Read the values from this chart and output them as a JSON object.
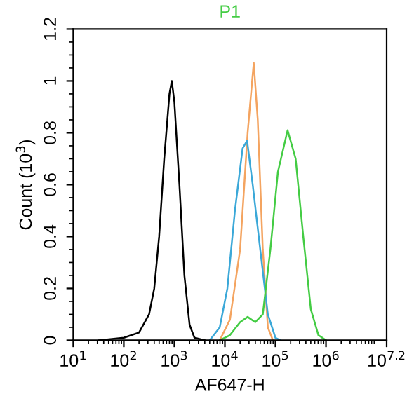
{
  "chart_data": {
    "type": "line",
    "title": "P1",
    "xlabel": "AF647-H",
    "ylabel": "Count (10$^{3}$)",
    "log": "x",
    "xlim": [
      10,
      15848932
    ],
    "xticks": [
      {
        "value": 10,
        "label": "10$^{1}$"
      },
      {
        "value": 100,
        "label": "10$^{2}$"
      },
      {
        "value": 1000,
        "label": "10$^{3}$"
      },
      {
        "value": 10000,
        "label": "10$^{4}$"
      },
      {
        "value": 100000,
        "label": "10$^{5}$"
      },
      {
        "value": 1000000,
        "label": "10$^{6}$"
      },
      {
        "value": 15848932,
        "label": "10$^{7.2}$"
      }
    ],
    "ylim": [
      0,
      1.2
    ],
    "yticks": [
      0,
      0.2,
      0.4,
      0.6,
      0.8,
      1,
      1.2
    ],
    "grid": false,
    "legend": false,
    "marker": "none",
    "line_style": "solid",
    "series": [
      {
        "color": "#000000",
        "x": [
          32,
          100,
          200,
          316,
          400,
          500,
          630,
          800,
          890,
          1000,
          1260,
          1580,
          2000,
          2500,
          4000
        ],
        "values": [
          0,
          0.01,
          0.03,
          0.1,
          0.2,
          0.4,
          0.7,
          0.95,
          1.0,
          0.92,
          0.6,
          0.25,
          0.06,
          0.01,
          0
        ]
      },
      {
        "color": "#f4a460",
        "x": [
          7900,
          12600,
          20000,
          28200,
          37200,
          44700,
          56200,
          70800,
          89100
        ],
        "values": [
          0,
          0.08,
          0.35,
          0.8,
          1.07,
          0.85,
          0.35,
          0.05,
          0
        ]
      },
      {
        "color": "#3ba8d8",
        "x": [
          5000,
          7900,
          11200,
          15800,
          22400,
          27500,
          35500,
          50000,
          70800,
          100000,
          126000
        ],
        "values": [
          0,
          0.05,
          0.2,
          0.5,
          0.74,
          0.77,
          0.6,
          0.35,
          0.1,
          0.01,
          0
        ]
      },
      {
        "color": "#44cc44",
        "x": [
          7900,
          12600,
          20000,
          28200,
          39800,
          56200,
          79400,
          112000,
          174000,
          251000,
          355000,
          501000,
          708000,
          1000000
        ],
        "values": [
          0,
          0.02,
          0.07,
          0.09,
          0.07,
          0.1,
          0.35,
          0.65,
          0.81,
          0.7,
          0.4,
          0.12,
          0.02,
          0
        ]
      }
    ]
  }
}
